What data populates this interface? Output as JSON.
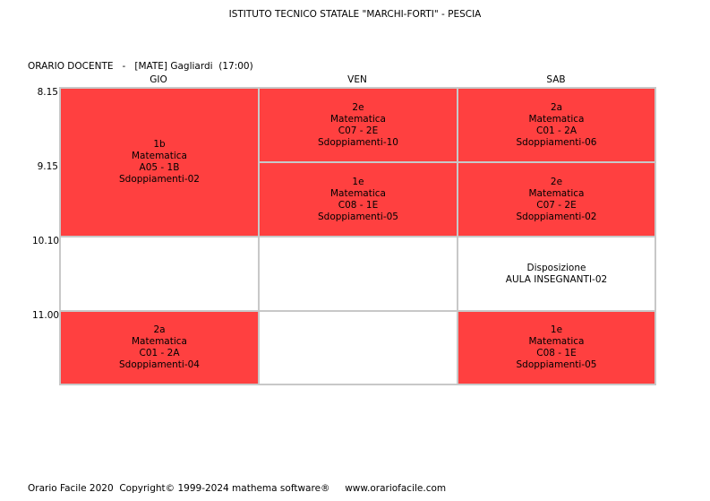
{
  "header": {
    "school_title": "ISTITUTO TECNICO STATALE \"MARCHI-FORTI\" - PESCIA",
    "docente_line": "ORARIO DOCENTE   -   [MATE] Gagliardi  (17:00)"
  },
  "days": [
    "GIO",
    "VEN",
    "SAB"
  ],
  "times": [
    "8.15",
    "9.15",
    "10.10",
    "11.00"
  ],
  "cells": {
    "gio_1": {
      "class": "1b",
      "subject": "Matematica",
      "room": "A05 - 1B",
      "group": "Sdoppiamenti-02"
    },
    "gio_4": {
      "class": "2a",
      "subject": "Matematica",
      "room": "C01 - 2A",
      "group": "Sdoppiamenti-04"
    },
    "ven_1": {
      "class": "2e",
      "subject": "Matematica",
      "room": "C07 - 2E",
      "group": "Sdoppiamenti-10"
    },
    "ven_2": {
      "class": "1e",
      "subject": "Matematica",
      "room": "C08 - 1E",
      "group": "Sdoppiamenti-05"
    },
    "sab_1": {
      "class": "2a",
      "subject": "Matematica",
      "room": "C01 - 2A",
      "group": "Sdoppiamenti-06"
    },
    "sab_2": {
      "class": "2e",
      "subject": "Matematica",
      "room": "C07 - 2E",
      "group": "Sdoppiamenti-02"
    },
    "sab_3": {
      "line1": "Disposizione",
      "line2": "AULA INSEGNANTI-02"
    },
    "sab_4": {
      "class": "1e",
      "subject": "Matematica",
      "room": "C08 - 1E",
      "group": "Sdoppiamenti-05"
    }
  },
  "colors": {
    "lesson": "#ff4040",
    "empty": "#ffffff",
    "border": "#c8c8c8"
  },
  "footer": {
    "text": "Orario Facile 2020  Copyright© 1999-2024 mathema software®     www.orariofacile.com"
  }
}
